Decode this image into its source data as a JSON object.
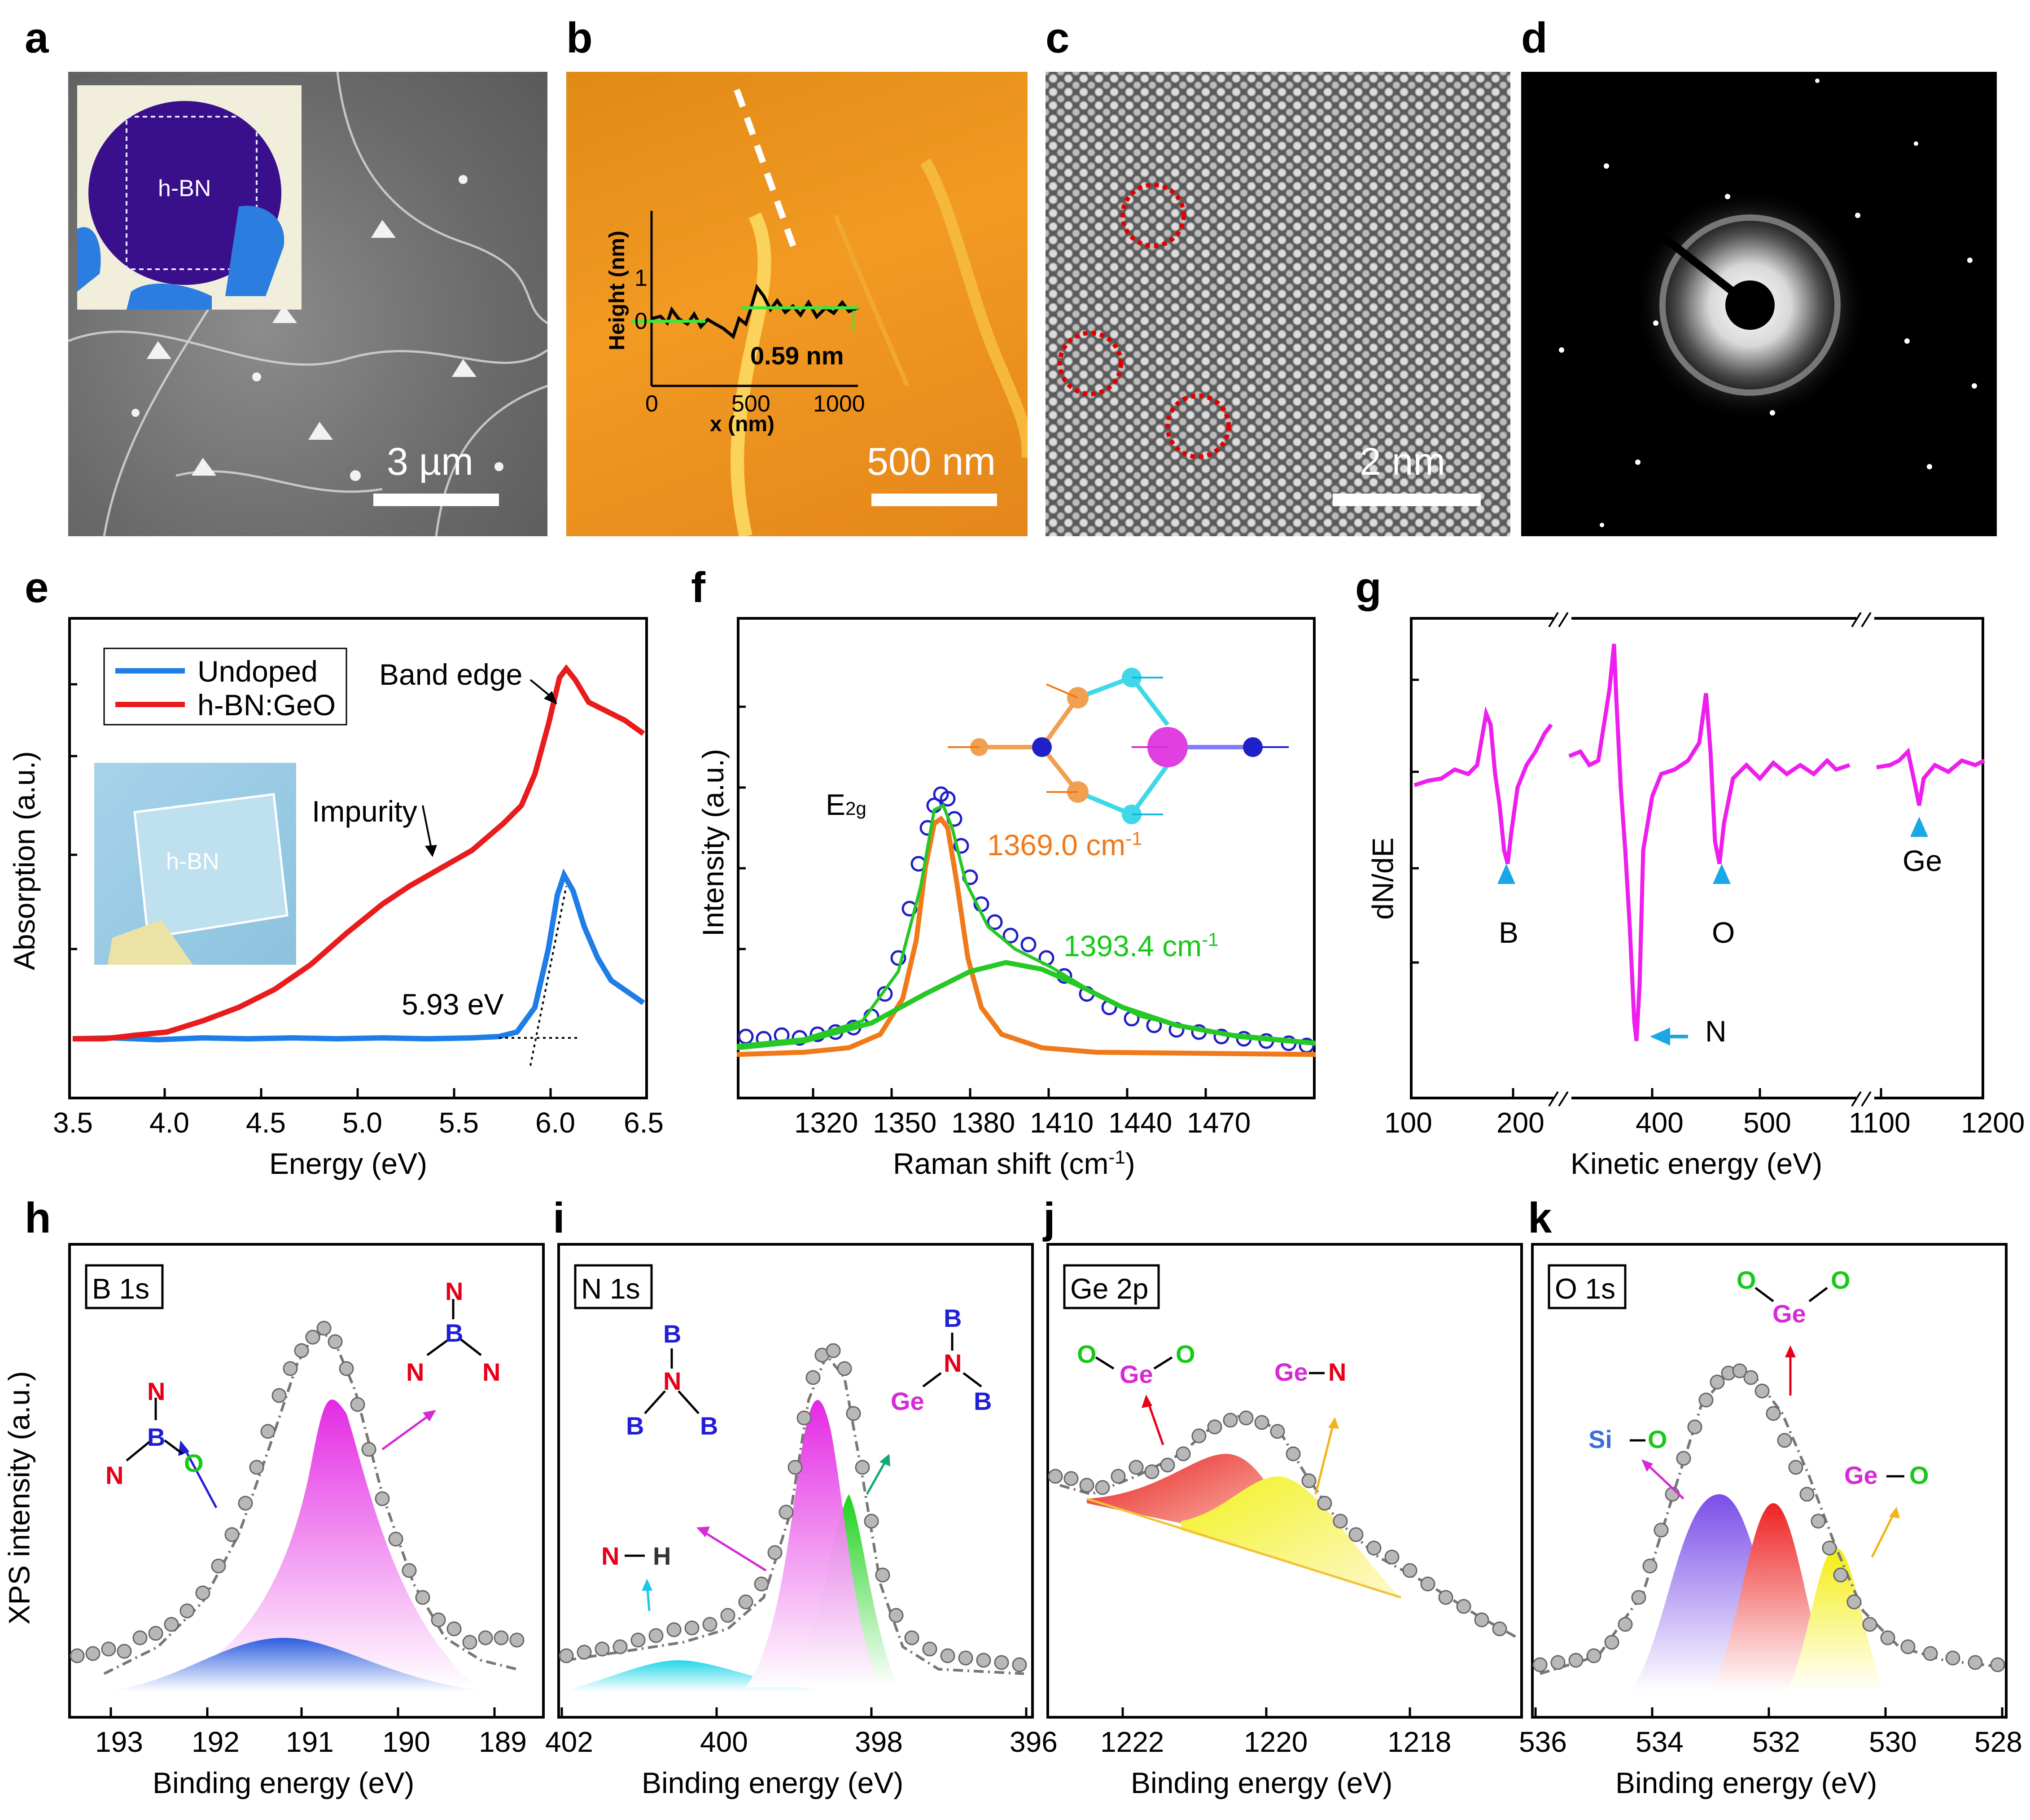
{
  "panel_labels": {
    "a": "a",
    "b": "b",
    "c": "c",
    "d": "d",
    "e": "e",
    "f": "f",
    "g": "g",
    "h": "h",
    "i": "i",
    "j": "j",
    "k": "k"
  },
  "a": {
    "scale_bar": "3 µm",
    "inset_label": "h-BN"
  },
  "b": {
    "scale_bar": "500 nm",
    "inset": {
      "ylabel": "Height (nm)",
      "xlabel": "x (nm)",
      "xticks": [
        "0",
        "500",
        "1000"
      ],
      "yticks": [
        "1",
        "0"
      ],
      "step": "0.59 nm"
    }
  },
  "c": {
    "scale_bar": "2 nm"
  },
  "e": {
    "xlabel": "Energy (eV)",
    "ylabel": "Absorption (a.u.)",
    "xticks": [
      "3.5",
      "4.0",
      "4.5",
      "5.0",
      "5.5",
      "6.0",
      "6.5"
    ],
    "legend": [
      "Undoped",
      "h-BN:GeO"
    ],
    "annotations": {
      "band_edge": "Band edge",
      "impurity": "Impurity",
      "gap": "5.93 eV",
      "inset_label": "h-BN"
    }
  },
  "f": {
    "xlabel": "Raman shift (cm",
    "xlabel_sup": "-1",
    "xlabel_end": ")",
    "ylabel": "Intensity (a.u.)",
    "xticks": [
      "1320",
      "1350",
      "1380",
      "1410",
      "1440",
      "1470"
    ],
    "mode": "E",
    "mode_sub": "2g",
    "peak1": "1369.0 cm",
    "peak2": "1393.4 cm",
    "sup": "-1"
  },
  "g": {
    "xlabel": "Kinetic energy (eV)",
    "ylabel": "dN/dE",
    "xticks": [
      "100",
      "200",
      "400",
      "500",
      "1100",
      "1200"
    ],
    "peaks": [
      "B",
      "N",
      "O",
      "Ge"
    ]
  },
  "h": {
    "title": "B 1s",
    "xlabel": "Binding energy (eV)",
    "ylabel": "XPS intensity (a.u.)",
    "xticks": [
      "193",
      "192",
      "191",
      "190",
      "189"
    ]
  },
  "i": {
    "title": "N 1s",
    "xlabel": "Binding energy (eV)",
    "xticks": [
      "402",
      "400",
      "398",
      "396"
    ]
  },
  "j": {
    "title": "Ge 2p",
    "xlabel": "Binding energy (eV)",
    "xticks": [
      "1222",
      "1220",
      "1218"
    ]
  },
  "k": {
    "title": "O 1s",
    "xlabel": "Binding energy (eV)",
    "xticks": [
      "536",
      "534",
      "532",
      "530",
      "528"
    ]
  },
  "atoms": {
    "B": "B",
    "N": "N",
    "O": "O",
    "Ge": "Ge",
    "H": "H",
    "Si": "Si"
  },
  "colors": {
    "red": "#e6001a",
    "blue": "#1f1fd6",
    "green": "#19c919",
    "magenta": "#d62ad6",
    "orange": "#f07a1a",
    "cyan": "#16b8d8"
  }
}
